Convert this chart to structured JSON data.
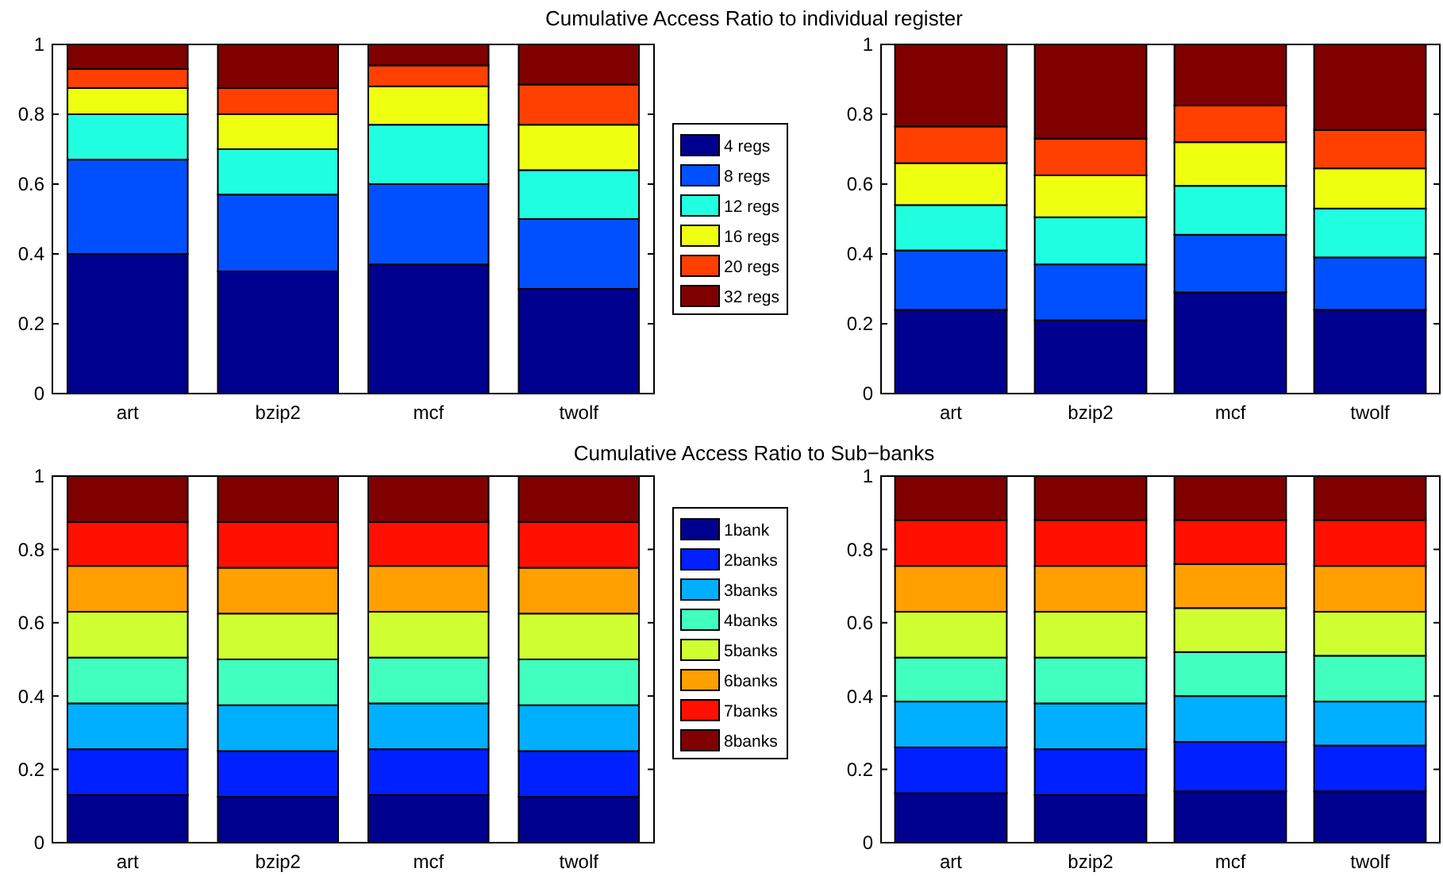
{
  "chart_data": [
    {
      "type": "bar",
      "title": "Cumulative Access Ratio to individual register",
      "categories": [
        "art",
        "bzip2",
        "mcf",
        "twolf"
      ],
      "stacked": true,
      "ylim": [
        0,
        1
      ],
      "yticks": [
        0,
        0.2,
        0.4,
        0.6,
        0.8,
        1
      ],
      "legend": "right",
      "series": [
        {
          "name": "4 regs",
          "color": "#00008f",
          "values": [
            0.4,
            0.35,
            0.37,
            0.3
          ]
        },
        {
          "name": "8 regs",
          "color": "#0050ff",
          "values": [
            0.27,
            0.22,
            0.23,
            0.2
          ]
        },
        {
          "name": "12 regs",
          "color": "#20ffdf",
          "values": [
            0.13,
            0.13,
            0.17,
            0.14
          ]
        },
        {
          "name": "16 regs",
          "color": "#efff10",
          "values": [
            0.075,
            0.1,
            0.11,
            0.13
          ]
        },
        {
          "name": "20 regs",
          "color": "#ff4000",
          "values": [
            0.055,
            0.075,
            0.06,
            0.115
          ]
        },
        {
          "name": "32 regs",
          "color": "#800000",
          "values": [
            0.07,
            0.125,
            0.06,
            0.115
          ]
        }
      ]
    },
    {
      "type": "bar",
      "categories": [
        "art",
        "bzip2",
        "mcf",
        "twolf"
      ],
      "stacked": true,
      "ylim": [
        0,
        1
      ],
      "yticks": [
        0,
        0.2,
        0.4,
        0.6,
        0.8,
        1
      ],
      "series": [
        {
          "color": "#00008f",
          "values": [
            0.24,
            0.21,
            0.29,
            0.24
          ]
        },
        {
          "color": "#0050ff",
          "values": [
            0.17,
            0.16,
            0.165,
            0.15
          ]
        },
        {
          "color": "#20ffdf",
          "values": [
            0.13,
            0.135,
            0.14,
            0.14
          ]
        },
        {
          "color": "#efff10",
          "values": [
            0.12,
            0.12,
            0.125,
            0.115
          ]
        },
        {
          "color": "#ff4000",
          "values": [
            0.105,
            0.105,
            0.105,
            0.11
          ]
        },
        {
          "color": "#800000",
          "values": [
            0.235,
            0.27,
            0.175,
            0.245
          ]
        }
      ]
    },
    {
      "type": "bar",
      "title": "Cumulative Access Ratio to Sub−banks",
      "categories": [
        "art",
        "bzip2",
        "mcf",
        "twolf"
      ],
      "stacked": true,
      "ylim": [
        0,
        1
      ],
      "yticks": [
        0,
        0.2,
        0.4,
        0.6,
        0.8,
        1
      ],
      "legend": "right",
      "series": [
        {
          "name": "1bank",
          "color": "#00008f",
          "values": [
            0.13,
            0.125,
            0.13,
            0.125
          ]
        },
        {
          "name": "2banks",
          "color": "#0020ff",
          "values": [
            0.125,
            0.125,
            0.125,
            0.125
          ]
        },
        {
          "name": "3banks",
          "color": "#00afff",
          "values": [
            0.125,
            0.125,
            0.125,
            0.125
          ]
        },
        {
          "name": "4banks",
          "color": "#40ffbf",
          "values": [
            0.125,
            0.125,
            0.125,
            0.125
          ]
        },
        {
          "name": "5banks",
          "color": "#cfff30",
          "values": [
            0.125,
            0.125,
            0.125,
            0.125
          ]
        },
        {
          "name": "6banks",
          "color": "#ffa000",
          "values": [
            0.125,
            0.125,
            0.125,
            0.125
          ]
        },
        {
          "name": "7banks",
          "color": "#ff1000",
          "values": [
            0.12,
            0.125,
            0.12,
            0.125
          ]
        },
        {
          "name": "8banks",
          "color": "#800000",
          "values": [
            0.125,
            0.125,
            0.125,
            0.125
          ]
        }
      ]
    },
    {
      "type": "bar",
      "categories": [
        "art",
        "bzip2",
        "mcf",
        "twolf"
      ],
      "stacked": true,
      "ylim": [
        0,
        1
      ],
      "yticks": [
        0,
        0.2,
        0.4,
        0.6,
        0.8,
        1
      ],
      "series": [
        {
          "color": "#00008f",
          "values": [
            0.135,
            0.13,
            0.14,
            0.14
          ]
        },
        {
          "color": "#0020ff",
          "values": [
            0.125,
            0.125,
            0.135,
            0.125
          ]
        },
        {
          "color": "#00afff",
          "values": [
            0.125,
            0.125,
            0.125,
            0.12
          ]
        },
        {
          "color": "#40ffbf",
          "values": [
            0.12,
            0.125,
            0.12,
            0.125
          ]
        },
        {
          "color": "#cfff30",
          "values": [
            0.125,
            0.125,
            0.12,
            0.12
          ]
        },
        {
          "color": "#ffa000",
          "values": [
            0.125,
            0.125,
            0.12,
            0.125
          ]
        },
        {
          "color": "#ff1000",
          "values": [
            0.125,
            0.125,
            0.12,
            0.125
          ]
        },
        {
          "color": "#800000",
          "values": [
            0.12,
            0.12,
            0.12,
            0.12
          ]
        }
      ]
    }
  ]
}
